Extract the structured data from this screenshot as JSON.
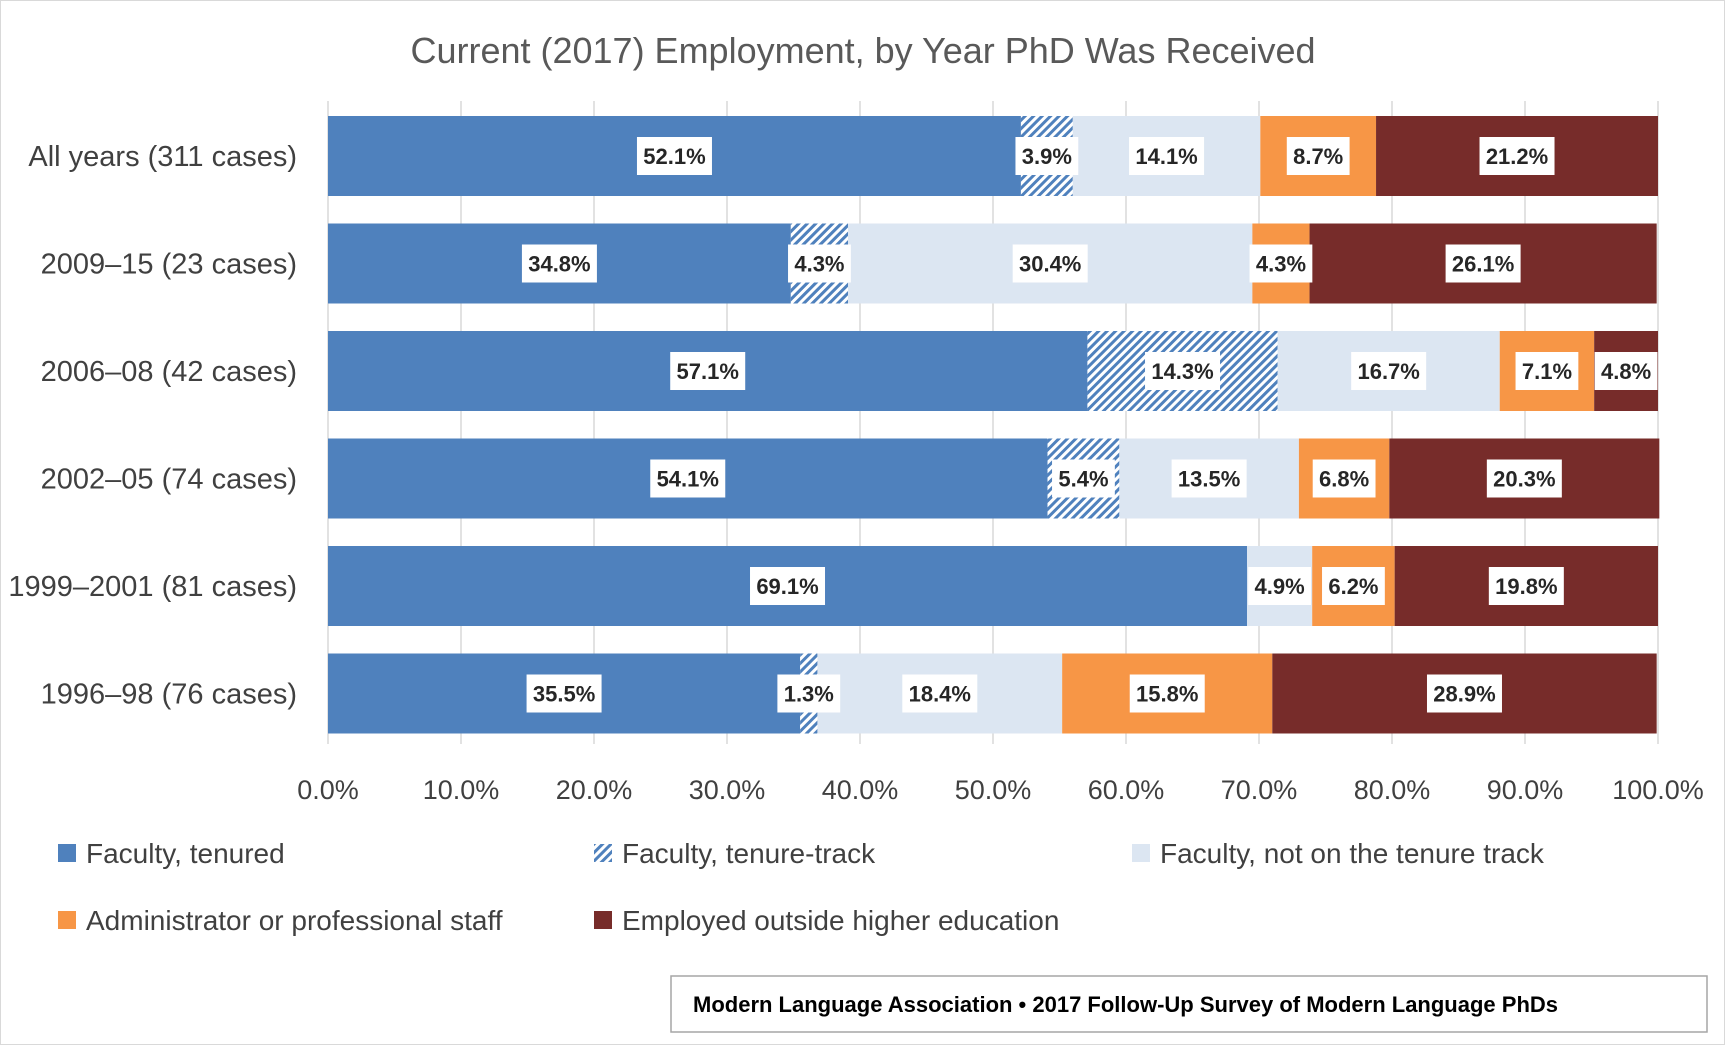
{
  "colors": {
    "tenured": "#4f81bd",
    "tenure_track": "#4f81bd",
    "not_tenure_track": "#dce6f2",
    "admin": "#f79646",
    "outside": "#772c2a"
  },
  "chart_data": {
    "type": "bar",
    "orientation": "horizontal",
    "stacked": true,
    "title": "Current (2017) Employment, by Year PhD Was Received",
    "categories": [
      "All years (311 cases)",
      "2009–15 (23 cases)",
      "2006–08 (42 cases)",
      "2002–05 (74 cases)",
      "1999–2001 (81 cases)",
      "1996–98 (76 cases)"
    ],
    "series": [
      {
        "name": "Faculty, tenured",
        "key": "tenured",
        "pattern": "solid",
        "values": [
          52.1,
          34.8,
          57.1,
          54.1,
          69.1,
          35.5
        ],
        "labels": [
          "52.1%",
          "34.8%",
          "57.1%",
          "54.1%",
          "69.1%",
          "35.5%"
        ]
      },
      {
        "name": "Faculty, tenure-track",
        "key": "tenure_track",
        "pattern": "hatched",
        "values": [
          3.9,
          4.3,
          14.3,
          5.4,
          0,
          1.3
        ],
        "labels": [
          "3.9%",
          "4.3%",
          "14.3%",
          "5.4%",
          "",
          "1.3%"
        ]
      },
      {
        "name": "Faculty, not on the tenure track",
        "key": "not_tenure_track",
        "pattern": "solid",
        "values": [
          14.1,
          30.4,
          16.7,
          13.5,
          4.9,
          18.4
        ],
        "labels": [
          "14.1%",
          "30.4%",
          "16.7%",
          "13.5%",
          "4.9%",
          "18.4%"
        ]
      },
      {
        "name": "Administrator or professional staff",
        "key": "admin",
        "pattern": "solid",
        "values": [
          8.7,
          4.3,
          7.1,
          6.8,
          6.2,
          15.8
        ],
        "labels": [
          "8.7%",
          "4.3%",
          "7.1%",
          "6.8%",
          "6.2%",
          "15.8%"
        ]
      },
      {
        "name": "Employed outside higher education",
        "key": "outside",
        "pattern": "solid",
        "values": [
          21.2,
          26.1,
          4.8,
          20.3,
          19.8,
          28.9
        ],
        "labels": [
          "21.2%",
          "26.1%",
          "4.8%",
          "20.3%",
          "19.8%",
          "28.9%"
        ]
      }
    ],
    "xlim": [
      0,
      100
    ],
    "x_ticks": [
      "0.0%",
      "10.0%",
      "20.0%",
      "30.0%",
      "40.0%",
      "50.0%",
      "60.0%",
      "70.0%",
      "80.0%",
      "90.0%",
      "100.0%"
    ],
    "grid": true,
    "legend_position": "bottom"
  },
  "source": "Modern Language Association • 2017 Follow-Up Survey of Modern Language PhDs"
}
